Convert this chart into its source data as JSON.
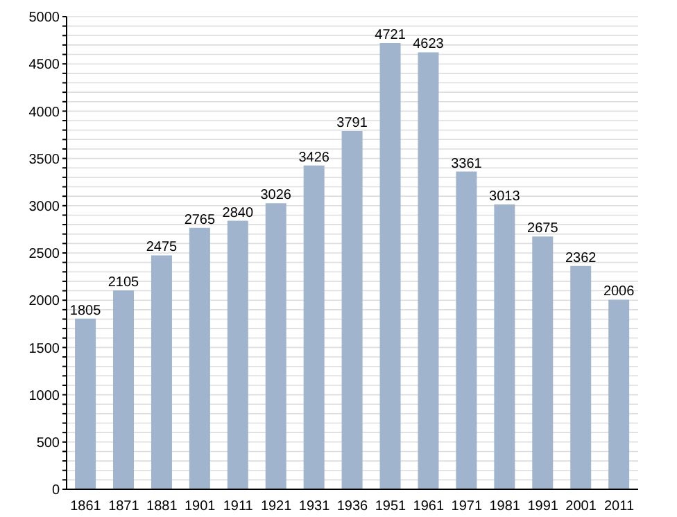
{
  "chart_data": {
    "type": "bar",
    "categories": [
      "1861",
      "1871",
      "1881",
      "1901",
      "1911",
      "1921",
      "1931",
      "1936",
      "1951",
      "1961",
      "1971",
      "1981",
      "1991",
      "2001",
      "2011"
    ],
    "values": [
      1805,
      2105,
      2475,
      2765,
      2840,
      3026,
      3426,
      3791,
      4721,
      4623,
      3361,
      3013,
      2675,
      2362,
      2006
    ],
    "color": "#a0b5cd",
    "data_labels": true,
    "grid": "y",
    "ylim": [
      0,
      5000
    ],
    "yticks": [
      0,
      {
        "value": 100,
        "label": null
      },
      {
        "value": 200,
        "label": null
      },
      {
        "value": 300,
        "label": null
      },
      {
        "value": 400,
        "label": null
      },
      500,
      {
        "value": 600,
        "label": null
      },
      {
        "value": 700,
        "label": null
      },
      {
        "value": 800,
        "label": null
      },
      {
        "value": 900,
        "label": null
      },
      1000,
      {
        "value": 1100,
        "label": null
      },
      {
        "value": 1200,
        "label": null
      },
      {
        "value": 1300,
        "label": null
      },
      {
        "value": 1400,
        "label": null
      },
      1500,
      {
        "value": 1600,
        "label": null
      },
      {
        "value": 1700,
        "label": null
      },
      {
        "value": 1800,
        "label": null
      },
      {
        "value": 1900,
        "label": null
      },
      2000,
      {
        "value": 2100,
        "label": null
      },
      {
        "value": 2200,
        "label": null
      },
      {
        "value": 2300,
        "label": null
      },
      {
        "value": 2400,
        "label": null
      },
      2500,
      {
        "value": 2600,
        "label": null
      },
      {
        "value": 2700,
        "label": null
      },
      {
        "value": 2800,
        "label": null
      },
      {
        "value": 2900,
        "label": null
      },
      3000,
      {
        "value": 3100,
        "label": null
      },
      {
        "value": 3200,
        "label": null
      },
      {
        "value": 3300,
        "label": null
      },
      {
        "value": 3400,
        "label": null
      },
      3500,
      {
        "value": 3600,
        "label": null
      },
      {
        "value": 3700,
        "label": null
      },
      {
        "value": 3800,
        "label": null
      },
      {
        "value": 3900,
        "label": null
      },
      4000,
      {
        "value": 4100,
        "label": null
      },
      {
        "value": 4200,
        "label": null
      },
      {
        "value": 4300,
        "label": null
      },
      {
        "value": 4400,
        "label": null
      },
      4500,
      {
        "value": 4600,
        "label": null
      },
      {
        "value": 4700,
        "label": null
      },
      {
        "value": 4800,
        "label": null
      },
      {
        "value": 4900,
        "label": null
      },
      5000
    ]
  }
}
